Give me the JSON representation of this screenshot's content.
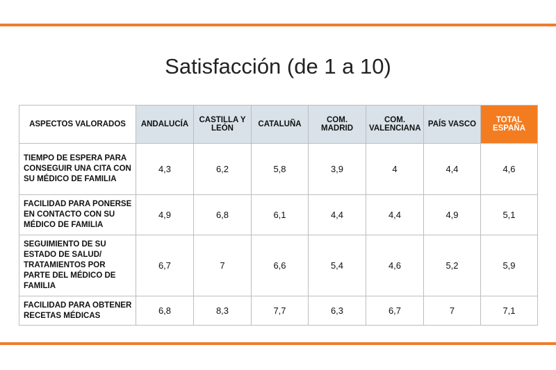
{
  "title": "Satisfacción (de 1 a 10)",
  "table": {
    "header": [
      "ASPECTOS VALORADOS",
      "ANDALUCÍA",
      "CASTILLA Y LEÓN",
      "CATALUÑA",
      "COM. MADRID",
      "COM. VALENCIANA",
      "PAÍS VASCO",
      "TOTAL ESPAÑA"
    ],
    "rows": [
      [
        "TIEMPO DE ESPERA PARA CONSEGUIR UNA CITA CON SU MÉDICO DE FAMILIA",
        "4,3",
        "6,2",
        "5,8",
        "3,9",
        "4",
        "4,4",
        "4,6"
      ],
      [
        "FACILIDAD PARA PONERSE EN CONTACTO CON SU MÉDICO DE FAMILIA",
        "4,9",
        "6,8",
        "6,1",
        "4,4",
        "4,4",
        "4,9",
        "5,1"
      ],
      [
        "SEGUIMIENTO DE SU ESTADO DE SALUD/ TRATAMIENTOS POR PARTE DEL MÉDICO DE FAMILIA",
        "6,7",
        "7",
        "6,6",
        "5,4",
        "4,6",
        "5,2",
        "5,9"
      ],
      [
        "FACILIDAD PARA OBTENER RECETAS MÉDICAS",
        "6,8",
        "8,3",
        "7,7",
        "6,3",
        "6,7",
        "7",
        "7,1"
      ]
    ]
  }
}
